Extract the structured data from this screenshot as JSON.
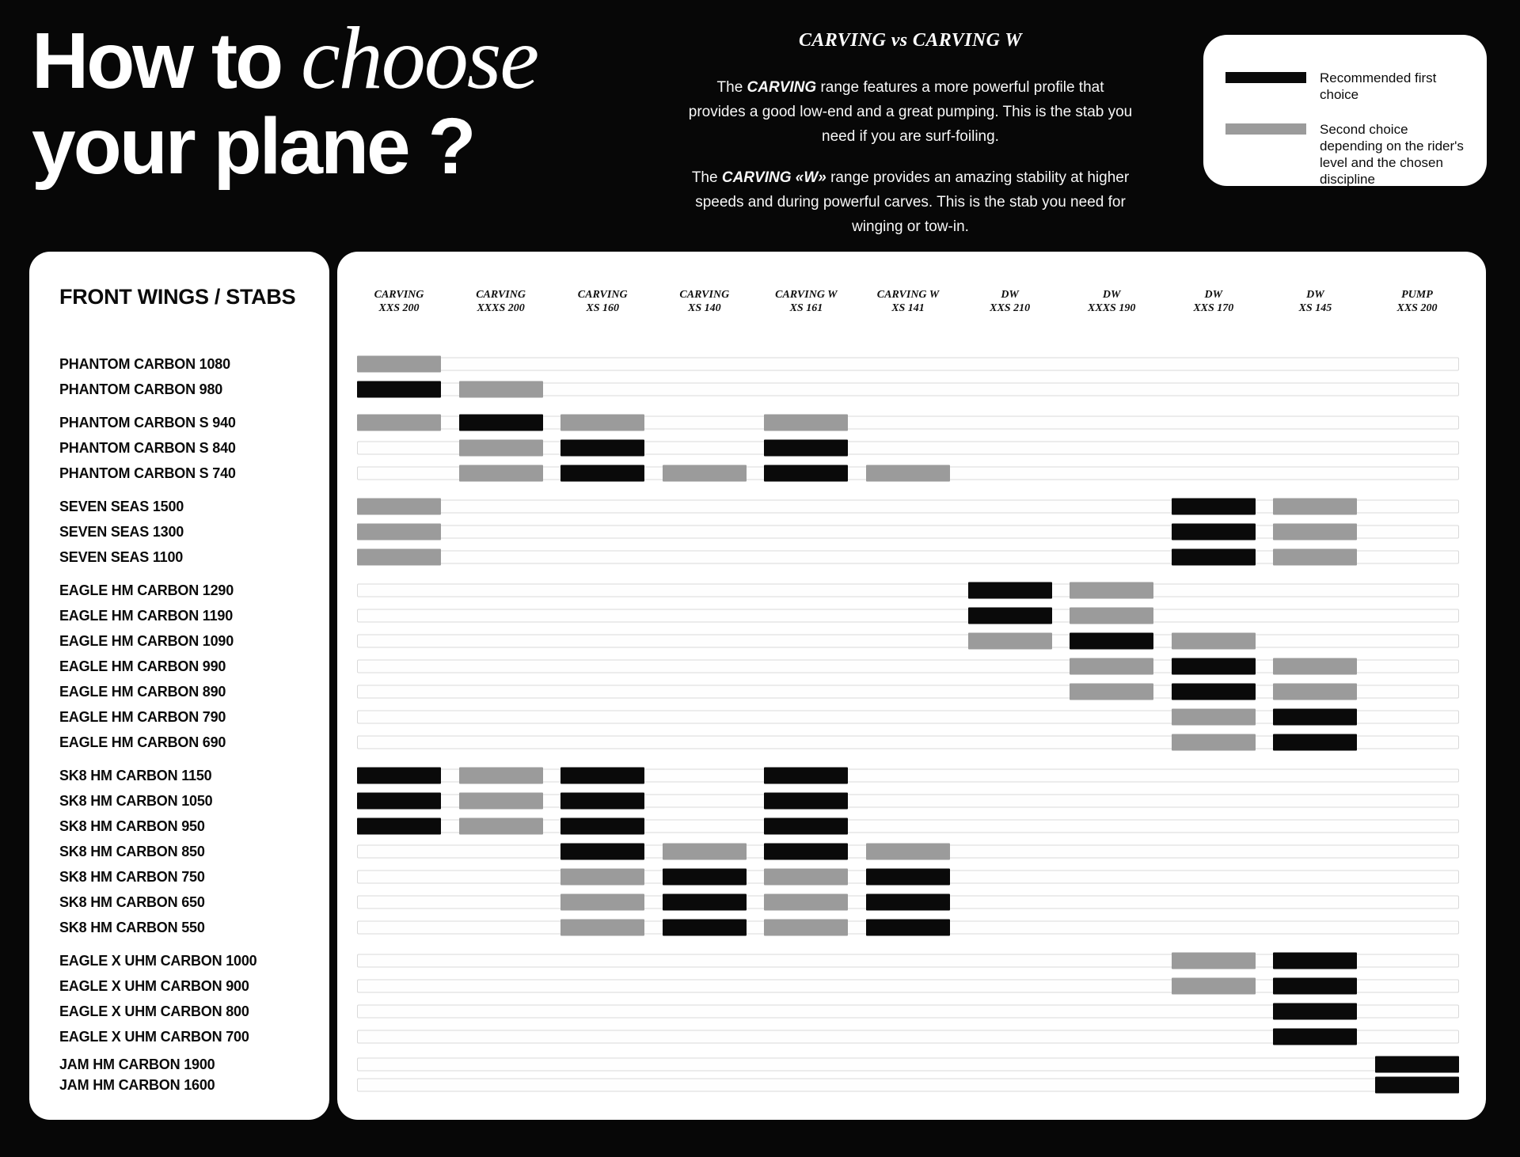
{
  "title": {
    "line1_regular": "How to ",
    "line1_italic": "choose",
    "line2": "your plane ?"
  },
  "intro": {
    "heading": "CARVING vs CARVING W",
    "p1": {
      "pre": "The ",
      "em": "CARVING",
      "post": " range features a more powerful profile that provides a good low-end and a great pumping. This is the stab you need if you are surf-foiling."
    },
    "p2": {
      "pre": "The ",
      "em": "CARVING «W»",
      "post": " range provides an amazing stability at higher speeds and during powerful carves. This is the stab you need for winging or tow-in."
    }
  },
  "legend": {
    "first_label": "Recommended first choice",
    "second_label": "Second choice depending on the rider's level and the chosen discipline"
  },
  "table_header": "FRONT WINGS / STABS",
  "colors": {
    "first": "#0a0a0a",
    "second": "#9b9b9b",
    "panel": "#ffffff",
    "background": "#070707"
  },
  "chart_data": {
    "type": "heatmap",
    "title": "How to choose your plane ?",
    "rows_label": "FRONT WINGS / STABS",
    "value_meanings": {
      "first": "Recommended first choice",
      "second": "Second choice depending on the rider's level and the chosen discipline"
    },
    "columns": [
      {
        "range": "CARVING",
        "size": "XXS 200"
      },
      {
        "range": "CARVING",
        "size": "XXXS 200"
      },
      {
        "range": "CARVING",
        "size": "XS 160"
      },
      {
        "range": "CARVING",
        "size": "XS 140"
      },
      {
        "range": "CARVING W",
        "size": "XS 161"
      },
      {
        "range": "CARVING W",
        "size": "XS 141"
      },
      {
        "range": "DW",
        "size": "XXS 210"
      },
      {
        "range": "DW",
        "size": "XXXS 190"
      },
      {
        "range": "DW",
        "size": "XXS 170"
      },
      {
        "range": "DW",
        "size": "XS 145"
      },
      {
        "range": "PUMP",
        "size": "XXS 200"
      }
    ],
    "groups": [
      {
        "rows": [
          {
            "label": "PHANTOM CARBON 1080",
            "cells": [
              {
                "col": 1,
                "value": "second"
              }
            ]
          },
          {
            "label": "PHANTOM CARBON 980",
            "cells": [
              {
                "col": 1,
                "value": "first"
              },
              {
                "col": 2,
                "value": "second"
              }
            ]
          }
        ]
      },
      {
        "rows": [
          {
            "label": "PHANTOM CARBON S 940",
            "cells": [
              {
                "col": 1,
                "value": "second"
              },
              {
                "col": 2,
                "value": "first"
              },
              {
                "col": 3,
                "value": "second"
              },
              {
                "col": 5,
                "value": "second"
              }
            ]
          },
          {
            "label": "PHANTOM CARBON S 840",
            "cells": [
              {
                "col": 2,
                "value": "second"
              },
              {
                "col": 3,
                "value": "first"
              },
              {
                "col": 5,
                "value": "first"
              }
            ]
          },
          {
            "label": "PHANTOM CARBON S 740",
            "cells": [
              {
                "col": 2,
                "value": "second"
              },
              {
                "col": 3,
                "value": "first"
              },
              {
                "col": 4,
                "value": "second"
              },
              {
                "col": 5,
                "value": "first"
              },
              {
                "col": 6,
                "value": "second"
              }
            ]
          }
        ]
      },
      {
        "rows": [
          {
            "label": "SEVEN SEAS 1500",
            "cells": [
              {
                "col": 1,
                "value": "second"
              },
              {
                "col": 9,
                "value": "first"
              },
              {
                "col": 10,
                "value": "second"
              }
            ]
          },
          {
            "label": "SEVEN SEAS 1300",
            "cells": [
              {
                "col": 1,
                "value": "second"
              },
              {
                "col": 9,
                "value": "first"
              },
              {
                "col": 10,
                "value": "second"
              }
            ]
          },
          {
            "label": "SEVEN SEAS 1100",
            "cells": [
              {
                "col": 1,
                "value": "second"
              },
              {
                "col": 9,
                "value": "first"
              },
              {
                "col": 10,
                "value": "second"
              }
            ]
          }
        ]
      },
      {
        "rows": [
          {
            "label": "EAGLE HM CARBON 1290",
            "cells": [
              {
                "col": 7,
                "value": "first"
              },
              {
                "col": 8,
                "value": "second"
              }
            ]
          },
          {
            "label": "EAGLE HM CARBON 1190",
            "cells": [
              {
                "col": 7,
                "value": "first"
              },
              {
                "col": 8,
                "value": "second"
              }
            ]
          },
          {
            "label": "EAGLE HM CARBON 1090",
            "cells": [
              {
                "col": 7,
                "value": "second"
              },
              {
                "col": 8,
                "value": "first"
              },
              {
                "col": 9,
                "value": "second"
              }
            ]
          },
          {
            "label": "EAGLE HM CARBON 990",
            "cells": [
              {
                "col": 8,
                "value": "second"
              },
              {
                "col": 9,
                "value": "first"
              },
              {
                "col": 10,
                "value": "second"
              }
            ]
          },
          {
            "label": "EAGLE HM CARBON 890",
            "cells": [
              {
                "col": 8,
                "value": "second"
              },
              {
                "col": 9,
                "value": "first"
              },
              {
                "col": 10,
                "value": "second"
              }
            ]
          },
          {
            "label": "EAGLE HM CARBON 790",
            "cells": [
              {
                "col": 9,
                "value": "second"
              },
              {
                "col": 10,
                "value": "first"
              }
            ]
          },
          {
            "label": "EAGLE HM CARBON 690",
            "cells": [
              {
                "col": 9,
                "value": "second"
              },
              {
                "col": 10,
                "value": "first"
              }
            ]
          }
        ]
      },
      {
        "rows": [
          {
            "label": "SK8 HM CARBON 1150",
            "cells": [
              {
                "col": 1,
                "value": "first"
              },
              {
                "col": 2,
                "value": "second"
              },
              {
                "col": 3,
                "value": "first"
              },
              {
                "col": 5,
                "value": "first"
              }
            ]
          },
          {
            "label": "SK8 HM CARBON 1050",
            "cells": [
              {
                "col": 1,
                "value": "first"
              },
              {
                "col": 2,
                "value": "second"
              },
              {
                "col": 3,
                "value": "first"
              },
              {
                "col": 5,
                "value": "first"
              }
            ]
          },
          {
            "label": "SK8 HM CARBON 950",
            "cells": [
              {
                "col": 1,
                "value": "first"
              },
              {
                "col": 2,
                "value": "second"
              },
              {
                "col": 3,
                "value": "first"
              },
              {
                "col": 5,
                "value": "first"
              }
            ]
          },
          {
            "label": "SK8 HM CARBON 850",
            "cells": [
              {
                "col": 3,
                "value": "first"
              },
              {
                "col": 4,
                "value": "second"
              },
              {
                "col": 5,
                "value": "first"
              },
              {
                "col": 6,
                "value": "second"
              }
            ]
          },
          {
            "label": "SK8 HM CARBON 750",
            "cells": [
              {
                "col": 3,
                "value": "second"
              },
              {
                "col": 4,
                "value": "first"
              },
              {
                "col": 5,
                "value": "second"
              },
              {
                "col": 6,
                "value": "first"
              }
            ]
          },
          {
            "label": "SK8 HM CARBON 650",
            "cells": [
              {
                "col": 3,
                "value": "second"
              },
              {
                "col": 4,
                "value": "first"
              },
              {
                "col": 5,
                "value": "second"
              },
              {
                "col": 6,
                "value": "first"
              }
            ]
          },
          {
            "label": "SK8 HM CARBON 550",
            "cells": [
              {
                "col": 3,
                "value": "second"
              },
              {
                "col": 4,
                "value": "first"
              },
              {
                "col": 5,
                "value": "second"
              },
              {
                "col": 6,
                "value": "first"
              }
            ]
          }
        ]
      },
      {
        "rows": [
          {
            "label": "EAGLE X UHM CARBON 1000",
            "cells": [
              {
                "col": 9,
                "value": "second"
              },
              {
                "col": 10,
                "value": "first"
              }
            ]
          },
          {
            "label": "EAGLE X UHM CARBON 900",
            "cells": [
              {
                "col": 9,
                "value": "second"
              },
              {
                "col": 10,
                "value": "first"
              }
            ]
          },
          {
            "label": "EAGLE X UHM CARBON 800",
            "cells": [
              {
                "col": 10,
                "value": "first"
              }
            ]
          },
          {
            "label": "EAGLE X UHM CARBON 700",
            "cells": [
              {
                "col": 10,
                "value": "first"
              }
            ]
          }
        ]
      },
      {
        "compact": true,
        "rows": [
          {
            "label": "JAM HM CARBON 1900",
            "cells": [
              {
                "col": 11,
                "value": "first"
              }
            ]
          },
          {
            "label": "JAM HM CARBON 1600",
            "cells": [
              {
                "col": 11,
                "value": "first"
              }
            ]
          }
        ]
      }
    ]
  }
}
